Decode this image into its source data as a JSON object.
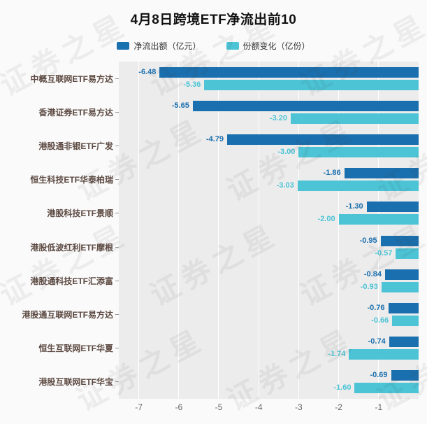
{
  "title": "4月8日跨境ETF净流出前10",
  "watermark": "证券之星",
  "legend": [
    {
      "label": "净流出额（亿元）",
      "color": "#1a6fae"
    },
    {
      "label": "份额变化（亿份）",
      "color": "#4cc4d6"
    }
  ],
  "chart_data": {
    "type": "bar",
    "orientation": "horizontal",
    "title": "4月8日跨境ETF净流出前10",
    "categories": [
      "中概互联网ETF易方达",
      "香港证券ETF易方达",
      "港股通非银ETF广发",
      "恒生科技ETF华泰柏瑞",
      "港股科技ETF景顺",
      "港股低波红利ETF摩根",
      "港股通科技ETF汇添富",
      "港股通互联网ETF易方达",
      "恒生互联网ETF华夏",
      "港股互联网ETF华宝"
    ],
    "series": [
      {
        "name": "净流出额（亿元）",
        "color": "#1a6fae",
        "values": [
          -6.48,
          -5.65,
          -4.79,
          -1.86,
          -1.3,
          -0.95,
          -0.84,
          -0.76,
          -0.74,
          -0.69
        ]
      },
      {
        "name": "份额变化（亿份）",
        "color": "#4cc4d6",
        "values": [
          -5.36,
          -3.2,
          -3.0,
          -3.03,
          -2.0,
          -0.57,
          -0.93,
          -0.66,
          -1.74,
          -1.6
        ]
      }
    ],
    "xlabel": "",
    "ylabel": "",
    "xlim": [
      -7.5,
      0
    ],
    "xticks": [
      -7,
      -6,
      -5,
      -4,
      -3,
      -2,
      -1
    ],
    "grid": true,
    "legend_position": "top",
    "plot_background": "#ececec",
    "gridline_color": "#ffffff"
  }
}
